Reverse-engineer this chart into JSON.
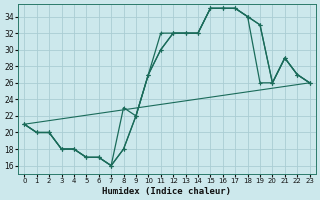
{
  "xlabel": "Humidex (Indice chaleur)",
  "bg_color": "#cce8ec",
  "grid_color": "#aacdd4",
  "line_color": "#1a6b5a",
  "xlim": [
    -0.5,
    23.5
  ],
  "ylim": [
    15.0,
    35.5
  ],
  "xticks": [
    0,
    1,
    2,
    3,
    4,
    5,
    6,
    7,
    8,
    9,
    10,
    11,
    12,
    13,
    14,
    15,
    16,
    17,
    18,
    19,
    20,
    21,
    22,
    23
  ],
  "yticks": [
    16,
    18,
    20,
    22,
    24,
    26,
    28,
    30,
    32,
    34
  ],
  "line1_x": [
    0,
    1,
    2,
    3,
    4,
    5,
    6,
    7,
    8,
    9,
    10,
    11,
    12,
    13,
    14,
    15,
    16,
    17,
    18,
    19,
    20,
    21,
    22,
    23
  ],
  "line1_y": [
    21,
    20,
    20,
    18,
    18,
    17,
    17,
    16,
    18,
    22,
    27,
    30,
    32,
    32,
    32,
    35,
    35,
    35,
    34,
    26,
    26,
    29,
    27,
    26
  ],
  "line2_x": [
    0,
    1,
    2,
    3,
    4,
    5,
    6,
    7,
    8,
    9,
    10,
    11,
    12,
    13,
    14,
    15,
    16,
    17,
    18,
    19,
    20,
    21,
    22,
    23
  ],
  "line2_y": [
    21,
    20,
    20,
    18,
    18,
    17,
    17,
    16,
    18,
    22,
    27,
    30,
    32,
    32,
    32,
    35,
    35,
    35,
    34,
    33,
    26,
    29,
    27,
    26
  ],
  "line3_x": [
    0,
    1,
    2,
    3,
    4,
    5,
    6,
    7,
    8,
    9,
    10,
    11,
    12,
    13,
    14,
    15,
    16,
    17,
    18,
    19,
    20,
    21,
    22,
    23
  ],
  "line3_y": [
    21,
    20,
    20,
    18,
    18,
    17,
    17,
    16,
    23,
    22,
    27,
    32,
    32,
    32,
    32,
    35,
    35,
    35,
    34,
    33,
    26,
    29,
    27,
    26
  ],
  "trend_x": [
    0,
    23
  ],
  "trend_y": [
    21,
    26
  ]
}
